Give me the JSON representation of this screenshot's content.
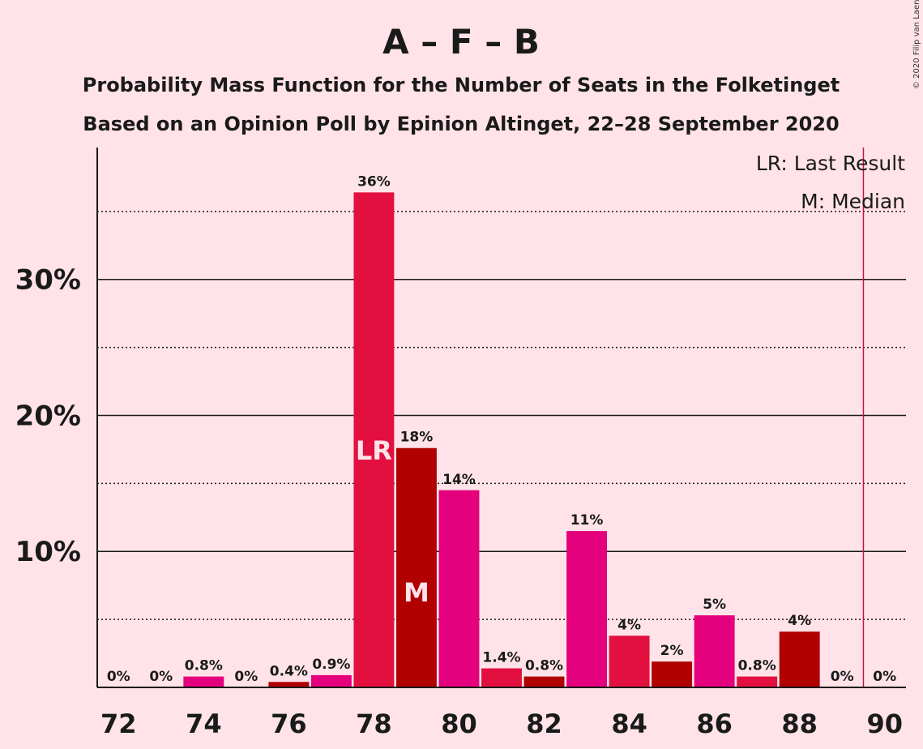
{
  "title": "A – F – B",
  "subtitle1": "Probability Mass Function for the Number of Seats in the Folketinget",
  "subtitle2": "Based on an Opinion Poll by Epinion Altinget, 22–28 September 2020",
  "copyright": "© 2020 Filip van Laenen",
  "legend": {
    "last_result": "LR: Last Result",
    "median": "M: Median"
  },
  "colors": {
    "background": "#FFE3E8",
    "bar_a": "#E3103F",
    "bar_b": "#B00000",
    "bar_c": "#E5007D",
    "majority_line": "#C41050"
  },
  "chart_data": {
    "type": "bar",
    "x": [
      72,
      73,
      74,
      75,
      76,
      77,
      78,
      79,
      80,
      81,
      82,
      83,
      84,
      85,
      86,
      87,
      88,
      89,
      90
    ],
    "values": [
      0,
      0,
      0.8,
      0,
      0.4,
      0.9,
      36.4,
      17.6,
      14.5,
      1.4,
      0.8,
      11.5,
      3.8,
      1.9,
      5.3,
      0.8,
      4.1,
      0,
      0
    ],
    "labels": [
      "0%",
      "0%",
      "0.8%",
      "0%",
      "0.4%",
      "0.9%",
      "36%",
      "18%",
      "14%",
      "1.4%",
      "0.8%",
      "11%",
      "4%",
      "2%",
      "5%",
      "0.8%",
      "4%",
      "0%",
      "0%"
    ],
    "bar_colors": [
      "#E3103F",
      "#B00000",
      "#E5007D",
      "#E3103F",
      "#B00000",
      "#E5007D",
      "#E3103F",
      "#B00000",
      "#E5007D",
      "#E3103F",
      "#B00000",
      "#E5007D",
      "#E3103F",
      "#B00000",
      "#E5007D",
      "#E3103F",
      "#B00000",
      "#E5007D",
      "#E3103F"
    ],
    "x_ticks": [
      72,
      74,
      76,
      78,
      80,
      82,
      84,
      86,
      88,
      90
    ],
    "x_tick_labels": [
      "72",
      "74",
      "76",
      "78",
      "80",
      "82",
      "84",
      "86",
      "88",
      "90"
    ],
    "y_ticks": [
      10,
      20,
      30
    ],
    "y_tick_labels": [
      "10%",
      "20%",
      "30%"
    ],
    "minor_gridlines": [
      5,
      15,
      25,
      35
    ],
    "ylim": [
      0,
      39.7
    ],
    "xlim": [
      71.5,
      90.5
    ],
    "last_result_seat": 78,
    "last_result_label": "LR",
    "median_seat": 79,
    "median_label": "M",
    "majority_line_x": 89.5,
    "grid": true,
    "legend_position": "top-right"
  }
}
